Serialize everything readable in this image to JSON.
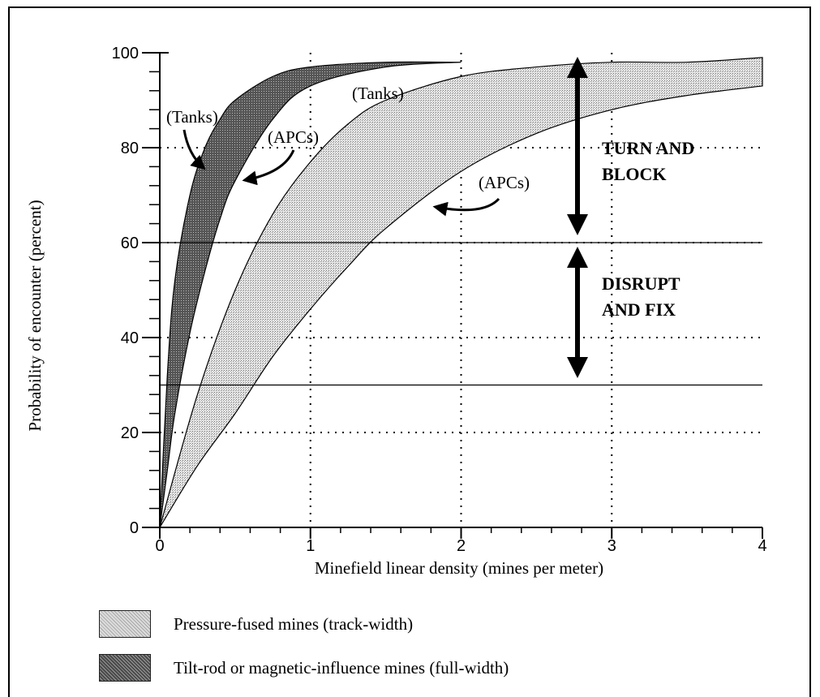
{
  "chart_data": {
    "type": "area",
    "xlabel": "Minefield linear density (mines per meter)",
    "ylabel": "Probability of encounter (percent)",
    "xlim": [
      0,
      4
    ],
    "ylim": [
      0,
      100
    ],
    "x_ticks": [
      "0",
      "1",
      "2",
      "3",
      "4"
    ],
    "y_ticks": [
      "0",
      "20",
      "40",
      "60",
      "80",
      "100"
    ],
    "grid": "dotted",
    "series": [
      {
        "name": "Pressure-fused mines (track-width)",
        "fill": "#c8c8c8",
        "upper": {
          "x": [
            0,
            0.25,
            0.5,
            0.75,
            1.0,
            1.25,
            1.5,
            2.0,
            2.5,
            3.0,
            3.5,
            4.0
          ],
          "y": [
            0,
            28,
            50,
            66,
            77,
            85,
            90,
            95,
            97,
            98,
            98,
            99
          ]
        },
        "lower": {
          "x": [
            0,
            0.25,
            0.5,
            0.75,
            1.0,
            1.25,
            1.5,
            2.0,
            2.5,
            3.0,
            3.5,
            4.0
          ],
          "y": [
            0,
            13,
            24,
            36,
            46,
            55,
            63,
            75,
            83,
            88,
            91,
            93
          ]
        }
      },
      {
        "name": "Tilt-rod or magnetic-influence mines (full-width)",
        "fill": "#6e6e6e",
        "upper": {
          "x": [
            0,
            0.05,
            0.1,
            0.2,
            0.3,
            0.4,
            0.5,
            0.75,
            1.0,
            1.5,
            2.0
          ],
          "y": [
            0,
            32,
            52,
            70,
            80,
            86,
            90,
            95,
            97,
            98,
            98
          ]
        },
        "lower": {
          "x": [
            0,
            0.05,
            0.1,
            0.2,
            0.3,
            0.4,
            0.5,
            0.75,
            1.0,
            1.5,
            2.0
          ],
          "y": [
            0,
            12,
            24,
            41,
            54,
            65,
            73,
            86,
            93,
            97,
            98
          ]
        }
      }
    ],
    "reference_lines_y": [
      60,
      30
    ],
    "annotations": [
      {
        "text": "(Tanks)",
        "x": 0.18,
        "y": 84
      },
      {
        "text": "(APCs)",
        "x": 0.92,
        "y": 81
      },
      {
        "text": "(Tanks)",
        "x": 1.6,
        "y": 91
      },
      {
        "text": "(APCs)",
        "x": 2.28,
        "y": 71
      },
      {
        "text": "TURN AND BLOCK",
        "x": 3.4,
        "y": 76
      },
      {
        "text": "DISRUPT AND FIX",
        "x": 3.4,
        "y": 45
      }
    ],
    "zone_arrows": [
      {
        "x": 2.75,
        "y_from": 98,
        "y_to": 62
      },
      {
        "x": 2.75,
        "y_from": 58,
        "y_to": 31
      }
    ]
  },
  "annotations_text": {
    "tanks_left": "(Tanks)",
    "apcs_left": "(APCs)",
    "tanks_right": "(Tanks)",
    "apcs_right": "(APCs)",
    "turn_line1": "TURN AND",
    "turn_line2": "BLOCK",
    "disrupt_line1": "DISRUPT",
    "disrupt_line2": "AND FIX"
  },
  "legend": {
    "pressure": {
      "label": "Pressure-fused mines (track-width)",
      "color": "#c8c8c8"
    },
    "tilt": {
      "label": "Tilt-rod or magnetic-influence mines (full-width)",
      "color": "#6e6e6e"
    }
  }
}
